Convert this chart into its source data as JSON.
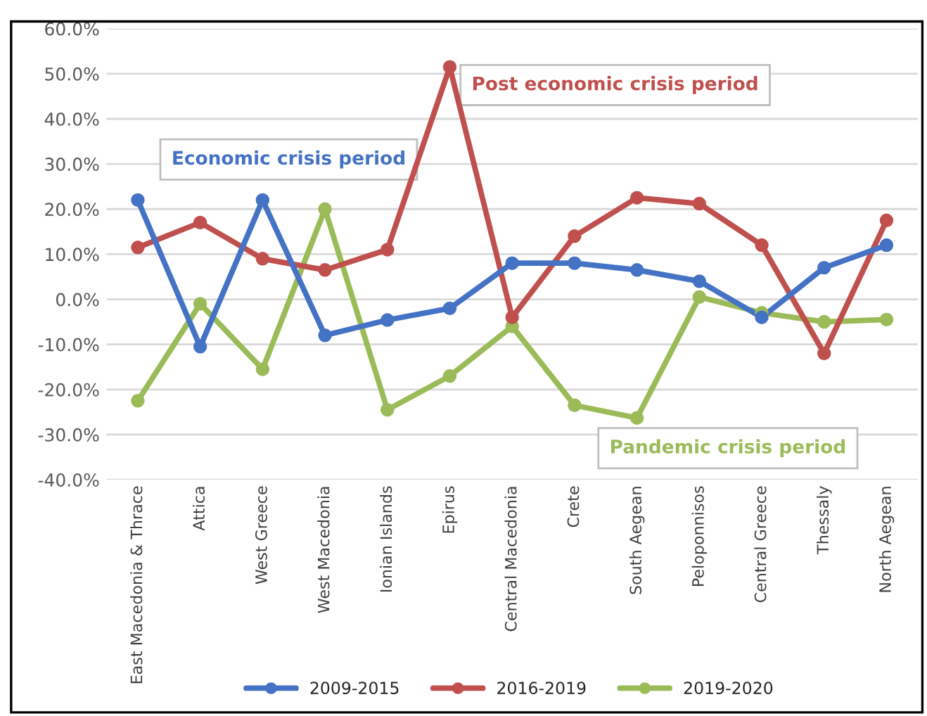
{
  "chart_data": {
    "type": "line",
    "categories": [
      "East Macedonia & Thrace",
      "Attica",
      "West Greece",
      "West Macedonia",
      "Ionian Islands",
      "Epirus",
      "Central Macedonia",
      "Crete",
      "South Aegean",
      "Peloponnisos",
      "Central Greece",
      "Thessaly",
      "North Aegean"
    ],
    "series": [
      {
        "name": "2009-2015",
        "color": "#4472c4",
        "values": [
          22,
          -10.5,
          22,
          -8,
          -4.6,
          -2,
          8,
          8,
          6.5,
          4,
          -4,
          7,
          12
        ]
      },
      {
        "name": "2016-2019",
        "color": "#c0504d",
        "values": [
          11.5,
          17,
          9,
          6.5,
          11,
          51.5,
          -4,
          14,
          22.5,
          21.2,
          12,
          -12,
          17.5
        ]
      },
      {
        "name": "2019-2020",
        "color": "#9bbb59",
        "values": [
          -22.5,
          -1,
          -15.5,
          20,
          -24.5,
          -17,
          -6,
          -23.5,
          -26.3,
          0.5,
          -3,
          -5,
          -4.5
        ]
      }
    ],
    "ylim": [
      -40,
      60
    ],
    "yticks": [
      {
        "value": -40,
        "label": "-40.0%"
      },
      {
        "value": -30,
        "label": "-30.0%"
      },
      {
        "value": -20,
        "label": "-20.0%"
      },
      {
        "value": -10,
        "label": "-10.0%"
      },
      {
        "value": 0,
        "label": "0.0%"
      },
      {
        "value": 10,
        "label": "10.0%"
      },
      {
        "value": 20,
        "label": "20.0%"
      },
      {
        "value": 30,
        "label": "30.0%"
      },
      {
        "value": 40,
        "label": "40.0%"
      },
      {
        "value": 50,
        "label": "50.0%"
      },
      {
        "value": 60,
        "label": "60.0%"
      }
    ],
    "annotations": [
      "Economic crisis period",
      "Post economic crisis period",
      "Pandemic crisis period"
    ],
    "grid": "y",
    "legend": "bottom",
    "marker": "circle",
    "line_style": "solid"
  }
}
